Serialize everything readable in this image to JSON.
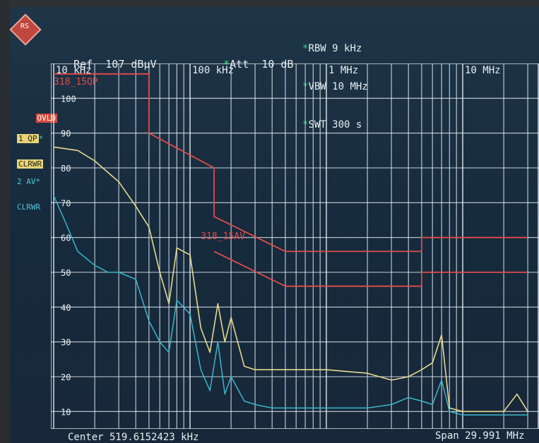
{
  "header": {
    "ref_label": "Ref",
    "ref_value": "107 dBµV",
    "att_label": "Att",
    "att_value": "10 dB",
    "rbw": "RBW 9 kHz",
    "vbw": "VBW 10 MHz",
    "swt": "SWT 300 s",
    "star": "*"
  },
  "side_labels": {
    "ovld": "OVLD",
    "trace1": "1 QP",
    "trace1_mode": "CLRWR",
    "trace2": "2 AV",
    "trace2_mode": "CLRWR",
    "star": "*"
  },
  "plot": {
    "freq_labels": [
      "10 kHz",
      "100 kHz",
      "1 MHz",
      "10 MHz"
    ],
    "level_labels": [
      "100",
      "90",
      "80",
      "70",
      "60",
      "50",
      "40",
      "30",
      "20",
      "10"
    ],
    "limit_qp_name": "318_15QP",
    "limit_av_name": "318_15AV",
    "colors": {
      "grid": "#e6eef4",
      "qp_trace": "#e6d98e",
      "av_trace": "#3ab6c8",
      "limit": "#e24b4b"
    }
  },
  "footer": {
    "center": "Center 519.6152423 kHz",
    "span": "Span 29.991 MHz"
  },
  "chart_data": {
    "type": "line",
    "x_scale": "log",
    "xlim_hz": [
      10000,
      30000000
    ],
    "ylim": [
      5,
      110
    ],
    "x_ticks": [
      "10 kHz",
      "100 kHz",
      "1 MHz",
      "10 MHz"
    ],
    "y_ticks": [
      100,
      90,
      80,
      70,
      60,
      50,
      40,
      30,
      20,
      10
    ],
    "grid": true,
    "series": [
      {
        "name": "1 QP",
        "x_hz": [
          10000,
          15000,
          20000,
          30000,
          40000,
          50000,
          60000,
          70000,
          80000,
          100000,
          120000,
          140000,
          160000,
          180000,
          200000,
          250000,
          300000,
          350000,
          400000,
          450000,
          500000,
          700000,
          1000000,
          2000000,
          3000000,
          4000000,
          5000000,
          6000000,
          7000000,
          8000000,
          10000000,
          15000000,
          20000000,
          25000000,
          30000000
        ],
        "values": [
          86,
          85,
          82,
          76,
          69,
          63,
          50,
          41,
          57,
          55,
          34,
          27,
          41,
          30,
          37,
          23,
          22,
          22,
          22,
          22,
          22,
          22,
          22,
          21,
          19,
          20,
          22,
          24,
          32,
          11,
          10,
          10,
          10,
          15,
          10
        ]
      },
      {
        "name": "2 AV",
        "x_hz": [
          10000,
          12000,
          15000,
          20000,
          25000,
          30000,
          40000,
          50000,
          60000,
          70000,
          80000,
          100000,
          120000,
          140000,
          160000,
          180000,
          200000,
          250000,
          300000,
          400000,
          500000,
          700000,
          1000000,
          2000000,
          3000000,
          4000000,
          5000000,
          6000000,
          7000000,
          8000000,
          10000000,
          20000000,
          30000000
        ],
        "values": [
          72,
          65,
          56,
          52,
          50,
          50,
          48,
          36,
          30,
          27,
          42,
          38,
          22,
          16,
          30,
          15,
          20,
          13,
          12,
          11,
          11,
          11,
          11,
          11,
          12,
          14,
          13,
          12,
          19,
          10,
          9,
          9,
          9
        ]
      }
    ],
    "limits": [
      {
        "name": "318_15QP",
        "x_hz": [
          10000,
          50000,
          50000,
          150000,
          150000,
          500000,
          5000000,
          5000000,
          30000000
        ],
        "values": [
          107,
          107,
          90,
          80,
          66,
          56,
          56,
          60,
          60
        ]
      },
      {
        "name": "318_15AV",
        "x_hz": [
          150000,
          500000,
          5000000,
          5000000,
          30000000
        ],
        "values": [
          56,
          46,
          46,
          50,
          50
        ]
      }
    ]
  }
}
